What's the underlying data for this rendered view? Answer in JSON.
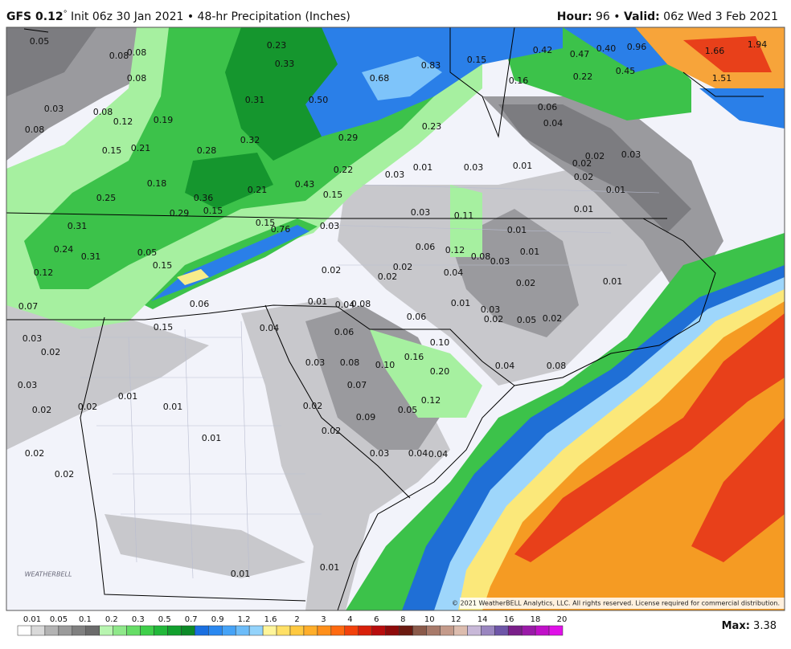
{
  "header": {
    "model": "GFS 0.12",
    "degree": "°",
    "description": " Init 06z 30 Jan 2021 • 48-hr Precipitation (Inches)",
    "hour_label": "Hour:",
    "hour": " 96 • ",
    "valid_label": "Valid:",
    "valid": " 06z Wed 3 Feb 2021"
  },
  "map": {
    "labels": [
      "0.05",
      "0.08",
      "0.08",
      "0.08",
      "0.03",
      "0.08",
      "0.12",
      "0.19",
      "0.08",
      "0.15",
      "0.21",
      "0.28",
      "0.32",
      "0.23",
      "0.33",
      "0.31",
      "0.50",
      "0.68",
      "0.83",
      "0.15",
      "0.42",
      "0.47",
      "0.40",
      "0.96",
      "1.66",
      "1.94",
      "1.51",
      "0.16",
      "0.22",
      "0.45",
      "0.29",
      "0.23",
      "0.06",
      "0.04",
      "0.18",
      "0.25",
      "0.36",
      "0.21",
      "0.43",
      "0.15",
      "0.22",
      "0.03",
      "0.01",
      "0.03",
      "0.01",
      "0.02",
      "0.03",
      "0.02",
      "0.02",
      "0.01",
      "0.29",
      "0.15",
      "0.31",
      "0.15",
      "0.76",
      "0.03",
      "0.03",
      "0.11",
      "0.01",
      "0.01",
      "0.24",
      "0.31",
      "0.05",
      "0.15",
      "0.06",
      "0.12",
      "0.08",
      "0.03",
      "0.01",
      "0.02",
      "0.02",
      "0.04",
      "0.02",
      "0.12",
      "0.02",
      "0.01",
      "0.07",
      "0.06",
      "0.01",
      "0.04",
      "0.08",
      "0.01",
      "0.03",
      "0.02",
      "0.05",
      "0.02",
      "0.06",
      "0.15",
      "0.04",
      "0.03",
      "0.02",
      "0.06",
      "0.10",
      "0.16",
      "0.03",
      "0.08",
      "0.10",
      "0.20",
      "0.04",
      "0.08",
      "0.07",
      "0.03",
      "0.01",
      "0.12",
      "0.02",
      "0.02",
      "0.01",
      "0.02",
      "0.05",
      "0.09",
      "0.02",
      "0.01",
      "0.02",
      "0.03",
      "0.04",
      "0.04",
      "0.02",
      "0.01",
      "0.01"
    ],
    "copyright": "© 2021 WeatherBELL Analytics, LLC. All rights reserved. License required for commercial distribution.",
    "logo": "WEATHERBELL"
  },
  "legend": {
    "labels": [
      "0.01",
      "0.05",
      "0.1",
      "0.2",
      "0.3",
      "0.5",
      "0.7",
      "0.9",
      "1.2",
      "1.6",
      "2",
      "3",
      "4",
      "6",
      "8",
      "10",
      "12",
      "14",
      "16",
      "18",
      "20"
    ],
    "colors": [
      "#ffffff",
      "#d9d9d9",
      "#b3b3b3",
      "#9a9a9a",
      "#808080",
      "#6b6b6b",
      "#b8f5b0",
      "#8fe88a",
      "#66dd66",
      "#3fcf4a",
      "#22b83a",
      "#12a02e",
      "#0c8a28",
      "#1a6fe0",
      "#2a88f0",
      "#46a3f7",
      "#6cbcf9",
      "#93d3fb",
      "#fff59a",
      "#ffe066",
      "#ffc940",
      "#ffae2a",
      "#ff8f1a",
      "#ff6a10",
      "#f2420c",
      "#d8200a",
      "#b80d0d",
      "#8e0b0b",
      "#6b1a10",
      "#8b5a4a",
      "#a87a6a",
      "#c49a8a",
      "#dcbcae",
      "#c8b8d8",
      "#9a86c0",
      "#6e56a8",
      "#7a1f8a",
      "#9a1aa8",
      "#c010c8",
      "#e010e8"
    ],
    "max_label": "Max:",
    "max": " 3.38"
  }
}
